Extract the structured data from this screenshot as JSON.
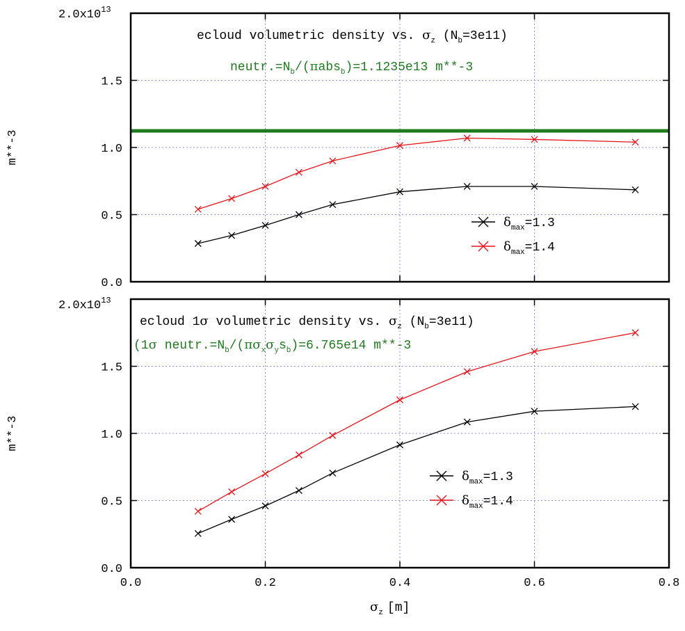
{
  "x_axis": {
    "ticks": [
      "0.0",
      "0.2",
      "0.4",
      "0.6",
      "0.8"
    ],
    "label_main": "σ",
    "label_sub": "z",
    "label_unit": "[m]"
  },
  "y_exponent_text": "2.0x10",
  "y_exponent_power": "13",
  "y_top_ticks": [
    "0.0",
    "0.5",
    "1.0",
    "1.5",
    ""
  ],
  "y_bottom_ticks": [
    "0.0",
    "0.5",
    "1.0",
    "1.5",
    ""
  ],
  "y_label": "m**-3",
  "legend": {
    "delta": "δ",
    "sub": "max",
    "labels": [
      "=1.3",
      "=1.4"
    ]
  },
  "colors": {
    "black": "#000000",
    "red": "#e8141a",
    "green": "#1f7a1f"
  },
  "top_panel": {
    "title_a": "ecloud volumetric density vs. ",
    "title_sigma": "σ",
    "title_sub": "z",
    "title_b": " (N",
    "title_nsub": "b",
    "title_c": "=3e11)",
    "note_a": "neutr.=N",
    "note_sub1": "b",
    "note_b": "/(",
    "note_pi": "π",
    "note_c": "abs",
    "note_sub2": "b",
    "note_d": ")=1.1235e13 m**-3"
  },
  "bottom_panel": {
    "title_a": "ecloud 1",
    "title_sigma1": "σ",
    "title_b": " volumetric density vs. ",
    "title_sigma2": "σ",
    "title_sub": "z",
    "title_c": " (N",
    "title_nsub": "b",
    "title_d": "=3e11)",
    "note_a": "(1",
    "note_sigma": "σ",
    "note_b": " neutr.=N",
    "note_sub1": "b",
    "note_c": "/(",
    "note_greek": "πσ",
    "note_d": "x",
    "note_sigma2": "σ",
    "note_e": "y",
    "note_f": "s",
    "note_sub2": "b",
    "note_g": ")=6.765e14 m**-3"
  },
  "chart_data": [
    {
      "type": "line",
      "xlabel": "σz [m]",
      "ylabel": "m**-3",
      "xlim": [
        0,
        0.8
      ],
      "ylim": [
        0,
        20000000000000.0
      ],
      "x": [
        0.1,
        0.15,
        0.2,
        0.25,
        0.3,
        0.4,
        0.5,
        0.6,
        0.75
      ],
      "series": [
        {
          "name": "δmax=1.3",
          "color": "#000000",
          "values": [
            2850000000000.0,
            3450000000000.0,
            4200000000000.0,
            5000000000000.0,
            5750000000000.0,
            6700000000000.0,
            7100000000000.0,
            7100000000000.0,
            6850000000000.0
          ]
        },
        {
          "name": "δmax=1.4",
          "color": "#e8141a",
          "values": [
            5400000000000.0,
            6200000000000.0,
            7100000000000.0,
            8150000000000.0,
            9000000000000.0,
            10150000000000.0,
            10700000000000.0,
            10600000000000.0,
            10400000000000.0
          ]
        }
      ],
      "reference_line": {
        "y": 11235000000000.0,
        "color": "#1f7a1f"
      },
      "grid": true,
      "legend": "center-right"
    },
    {
      "type": "line",
      "xlabel": "σz [m]",
      "ylabel": "m**-3",
      "xlim": [
        0,
        0.8
      ],
      "ylim": [
        0,
        20000000000000.0
      ],
      "x": [
        0.1,
        0.15,
        0.2,
        0.25,
        0.3,
        0.4,
        0.5,
        0.6,
        0.75
      ],
      "series": [
        {
          "name": "δmax=1.3",
          "color": "#000000",
          "values": [
            2550000000000.0,
            3600000000000.0,
            4600000000000.0,
            5750000000000.0,
            7050000000000.0,
            9150000000000.0,
            10850000000000.0,
            11650000000000.0,
            12000000000000.0
          ]
        },
        {
          "name": "δmax=1.4",
          "color": "#e8141a",
          "values": [
            4200000000000.0,
            5650000000000.0,
            7000000000000.0,
            8400000000000.0,
            9850000000000.0,
            12500000000000.0,
            14600000000000.0,
            16100000000000.0,
            17500000000000.0
          ]
        }
      ],
      "grid": true,
      "legend": "center-right"
    }
  ]
}
